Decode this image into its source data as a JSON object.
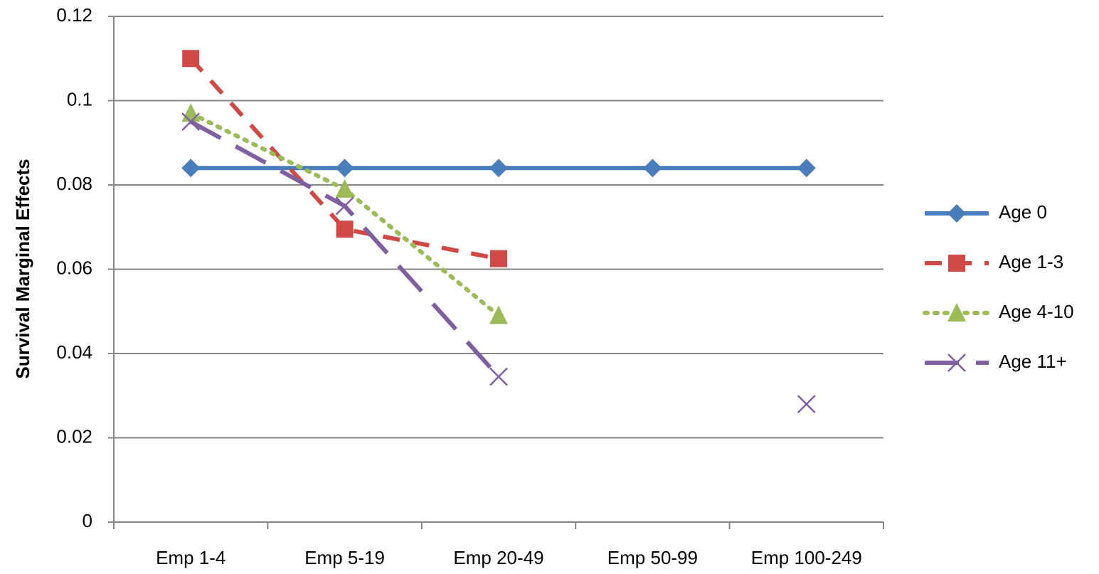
{
  "chart_data": {
    "type": "line",
    "y_label": "Survival Marginal Effects",
    "categories": [
      "Emp 1-4",
      "Emp 5-19",
      "Emp 20-49",
      "Emp 50-99",
      "Emp 100-249"
    ],
    "series": [
      {
        "name": "Age 0",
        "color": "#4a7ebb",
        "dash": "solid",
        "marker": "diamond",
        "values": [
          0.084,
          0.084,
          0.084,
          0.084,
          0.084
        ]
      },
      {
        "name": "Age 1-3",
        "color": "#cf4a46",
        "dash": "dashed",
        "marker": "square",
        "values": [
          0.11,
          0.0695,
          0.0625,
          null,
          null
        ]
      },
      {
        "name": "Age 4-10",
        "color": "#9bbb59",
        "dash": "dotted",
        "marker": "triangle",
        "values": [
          0.097,
          0.079,
          0.049,
          null,
          null
        ]
      },
      {
        "name": "Age 11+",
        "color": "#7f5fa0",
        "dash": "longdash",
        "marker": "x",
        "values": [
          0.095,
          0.075,
          0.0345,
          null,
          0.028
        ]
      }
    ],
    "ylim": [
      0,
      0.12
    ],
    "yticks": [
      0,
      0.02,
      0.04,
      0.06,
      0.08,
      0.1,
      0.12
    ],
    "grid": true,
    "legend": "right"
  }
}
